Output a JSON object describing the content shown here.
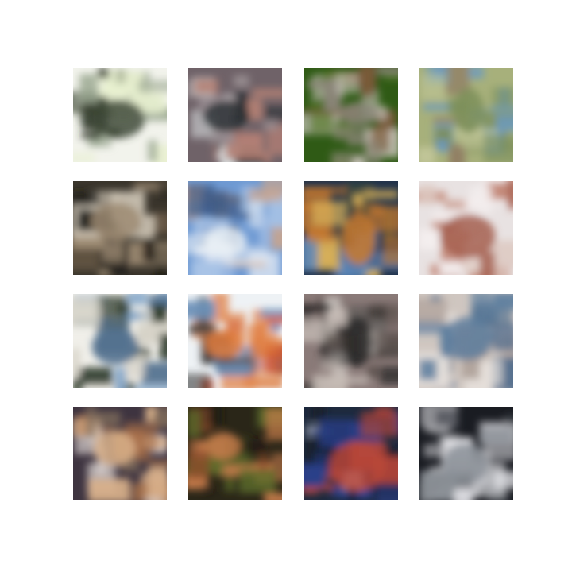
{
  "grid": {
    "rows": 4,
    "columns": 4,
    "tiles": [
      {
        "icon": "generated-sample-image",
        "palette": [
          "#f2f3ec",
          "#9aa790",
          "#3f4a38",
          "#1e2418",
          "#e8f0d0"
        ]
      },
      {
        "icon": "generated-sample-image",
        "palette": [
          "#6f6268",
          "#9a8f93",
          "#2d3236",
          "#d7dcdd",
          "#b27f74"
        ]
      },
      {
        "icon": "generated-sample-image",
        "palette": [
          "#2f5a15",
          "#5a7a2d",
          "#8a8577",
          "#c9c4ba",
          "#7a5a3a"
        ]
      },
      {
        "icon": "generated-sample-image",
        "palette": [
          "#a7b07b",
          "#c2c79a",
          "#7c8f5a",
          "#6a9ac2",
          "#8f7a62"
        ]
      },
      {
        "icon": "generated-sample-image",
        "palette": [
          "#3a352c",
          "#6e5d49",
          "#9c8a72",
          "#d8cfbf",
          "#1c1a16"
        ]
      },
      {
        "icon": "generated-sample-image",
        "palette": [
          "#6f9ad3",
          "#a9c3e6",
          "#e8eef5",
          "#3d5a86",
          "#c9a58f"
        ]
      },
      {
        "icon": "generated-sample-image",
        "palette": [
          "#21324a",
          "#d9b25a",
          "#c97a2e",
          "#5b86b8",
          "#3a4a3a"
        ]
      },
      {
        "icon": "generated-sample-image",
        "palette": [
          "#e8e2e2",
          "#c48a7a",
          "#a55f4f",
          "#dcc8c0",
          "#f4eeee"
        ]
      },
      {
        "icon": "generated-sample-image",
        "palette": [
          "#f0efe9",
          "#7ea2c8",
          "#4a6a8a",
          "#2f3c2c",
          "#d6d3c8"
        ]
      },
      {
        "icon": "generated-sample-image",
        "palette": [
          "#eef2f5",
          "#c84a2a",
          "#e07a3a",
          "#6a90b8",
          "#3a3a3a"
        ]
      },
      {
        "icon": "generated-sample-image",
        "palette": [
          "#8a7a78",
          "#c9bfb9",
          "#2a2828",
          "#e8e2dc",
          "#5e5450"
        ]
      },
      {
        "icon": "generated-sample-image",
        "palette": [
          "#cfc6c0",
          "#e6dfda",
          "#5f7f9f",
          "#4d6a8a",
          "#a89a92"
        ]
      },
      {
        "icon": "generated-sample-image",
        "palette": [
          "#3e3440",
          "#a8704a",
          "#d8b08a",
          "#7d6a5a",
          "#e8e0dc"
        ]
      },
      {
        "icon": "generated-sample-image",
        "palette": [
          "#2a2618",
          "#8a4a2a",
          "#c47a4a",
          "#5a6a2a",
          "#1a1814"
        ]
      },
      {
        "icon": "generated-sample-image",
        "palette": [
          "#1e2a3e",
          "#2a3f8a",
          "#b8463a",
          "#d8dde4",
          "#141c2a"
        ]
      },
      {
        "icon": "generated-sample-image",
        "palette": [
          "#1a1c22",
          "#c8c8cc",
          "#8a8f96",
          "#e6e6ea",
          "#3a3e46"
        ]
      }
    ]
  }
}
